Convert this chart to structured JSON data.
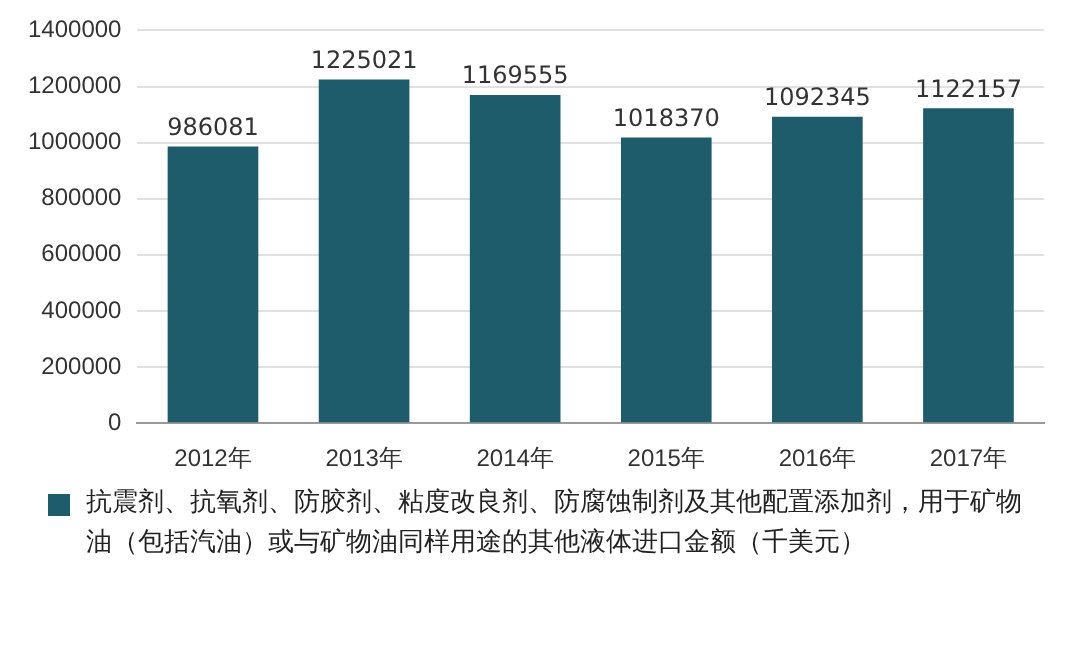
{
  "chart_data": {
    "type": "bar",
    "categories": [
      "2012年",
      "2013年",
      "2014年",
      "2015年",
      "2016年",
      "2017年"
    ],
    "series": [
      {
        "name": "抗震剂、抗氧剂、防胶剂、粘度改良剂、防腐蚀制剂及其他配置添加剂，用于矿物油（包括汽油）或与矿物油同样用途的其他液体进口金额（千美元）",
        "color": "#1e5b6b",
        "values": [
          986081,
          1225021,
          1169555,
          1018370,
          1092345,
          1122157
        ]
      }
    ],
    "ylim": [
      0,
      1400000
    ],
    "yticks": [
      0,
      200000,
      400000,
      600000,
      800000,
      1000000,
      1200000,
      1400000
    ],
    "grid": "y",
    "legend": "bottom",
    "data_labels": true
  }
}
